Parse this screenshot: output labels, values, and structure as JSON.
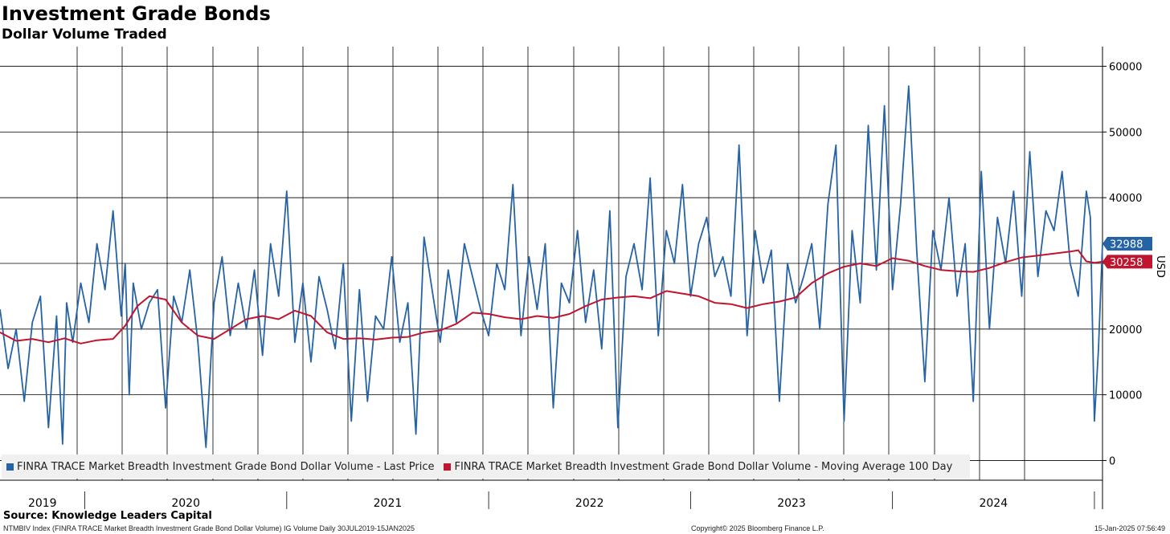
{
  "header": {
    "title": "Investment Grade Bonds",
    "subtitle": "Dollar Volume Traded"
  },
  "footer": {
    "source": "Source: Knowledge Leaders Capital",
    "index_description": "NTMBIV Index (FINRA TRACE Market Breadth Investment Grade Bond Dollar Volume) IG Volume  Daily 30JUL2019-15JAN2025",
    "copyright": "Copyright© 2025 Bloomberg Finance L.P.",
    "timestamp": "15-Jan-2025 07:56:49"
  },
  "colors": {
    "series_last_price": "#2563a5",
    "series_moving_average": "#c0152f",
    "grid": "#000000"
  },
  "chart_data": {
    "type": "line",
    "title": "Investment Grade Bonds",
    "subtitle": "Dollar Volume Traded",
    "xlabel": "",
    "ylabel": "USD",
    "ylim": [
      -3000,
      63000
    ],
    "y_ticks": [
      0,
      10000,
      20000,
      30000,
      40000,
      50000,
      60000
    ],
    "y_tick_labels": [
      "0",
      "10000",
      "20000",
      "30000",
      "40000",
      "50000",
      "60000"
    ],
    "x_range": [
      2019.58,
      2025.04
    ],
    "year_labels": [
      {
        "label": "2019",
        "center": 2019.79
      },
      {
        "label": "2020",
        "center": 2020.5
      },
      {
        "label": "2021",
        "center": 2021.5
      },
      {
        "label": "2022",
        "center": 2022.5
      },
      {
        "label": "2023",
        "center": 2023.5
      },
      {
        "label": "2024",
        "center": 2024.5
      }
    ],
    "year_separators": [
      2020.0,
      2021.0,
      2022.0,
      2023.0,
      2024.0,
      2025.0
    ],
    "grid": true,
    "legend": {
      "position": "bottom-left",
      "entries": [
        "FINRA TRACE Market Breadth Investment Grade Bond Dollar Volume - Last Price",
        "FINRA TRACE Market Breadth Investment Grade Bond Dollar Volume - Moving Average 100 Day"
      ]
    },
    "last_value_tags": [
      {
        "series": "Last Price",
        "value": "32988"
      },
      {
        "series": "Moving Average 100 Day",
        "value": "30258"
      }
    ],
    "series": [
      {
        "name": "FINRA TRACE Market Breadth Investment Grade Bond Dollar Volume - Last Price",
        "color": "#2563a5",
        "x": [
          2019.58,
          2019.62,
          2019.66,
          2019.7,
          2019.74,
          2019.78,
          2019.82,
          2019.86,
          2019.89,
          2019.91,
          2019.94,
          2019.98,
          2020.02,
          2020.06,
          2020.1,
          2020.14,
          2020.18,
          2020.2,
          2020.22,
          2020.24,
          2020.28,
          2020.32,
          2020.36,
          2020.4,
          2020.44,
          2020.48,
          2020.52,
          2020.56,
          2020.6,
          2020.64,
          2020.68,
          2020.72,
          2020.76,
          2020.8,
          2020.84,
          2020.88,
          2020.92,
          2020.96,
          2021.0,
          2021.04,
          2021.08,
          2021.12,
          2021.16,
          2021.2,
          2021.24,
          2021.28,
          2021.32,
          2021.36,
          2021.4,
          2021.44,
          2021.48,
          2021.52,
          2021.56,
          2021.6,
          2021.64,
          2021.68,
          2021.72,
          2021.76,
          2021.8,
          2021.84,
          2021.88,
          2021.92,
          2021.96,
          2022.0,
          2022.04,
          2022.08,
          2022.12,
          2022.16,
          2022.2,
          2022.24,
          2022.28,
          2022.32,
          2022.36,
          2022.4,
          2022.44,
          2022.48,
          2022.52,
          2022.56,
          2022.6,
          2022.64,
          2022.68,
          2022.72,
          2022.76,
          2022.8,
          2022.84,
          2022.88,
          2022.92,
          2022.96,
          2023.0,
          2023.04,
          2023.08,
          2023.12,
          2023.16,
          2023.2,
          2023.24,
          2023.28,
          2023.32,
          2023.36,
          2023.4,
          2023.44,
          2023.48,
          2023.52,
          2023.56,
          2023.6,
          2023.64,
          2023.68,
          2023.72,
          2023.76,
          2023.8,
          2023.84,
          2023.88,
          2023.92,
          2023.96,
          2024.0,
          2024.04,
          2024.08,
          2024.12,
          2024.16,
          2024.2,
          2024.24,
          2024.28,
          2024.32,
          2024.36,
          2024.4,
          2024.44,
          2024.48,
          2024.52,
          2024.56,
          2024.6,
          2024.64,
          2024.68,
          2024.72,
          2024.76,
          2024.8,
          2024.84,
          2024.88,
          2024.92,
          2024.96,
          2024.98,
          2025.0,
          2025.02,
          2025.04
        ],
        "values": [
          23000,
          14000,
          20000,
          9000,
          21000,
          25000,
          5000,
          22000,
          2500,
          24000,
          18000,
          27000,
          21000,
          33000,
          26000,
          38000,
          22000,
          30000,
          10000,
          27000,
          20000,
          24000,
          26000,
          8000,
          25000,
          21000,
          29000,
          18000,
          2000,
          24000,
          31000,
          19000,
          27000,
          20000,
          29000,
          16000,
          33000,
          25000,
          41000,
          18000,
          27000,
          15000,
          28000,
          23000,
          17000,
          30000,
          6000,
          26000,
          9000,
          22000,
          20000,
          31000,
          18000,
          24000,
          4000,
          34000,
          26000,
          18000,
          29000,
          21000,
          33000,
          28000,
          23000,
          19000,
          30000,
          26000,
          42000,
          19000,
          31000,
          23000,
          33000,
          8000,
          27000,
          24000,
          35000,
          21000,
          29000,
          17000,
          38000,
          5000,
          28000,
          33000,
          26000,
          43000,
          19000,
          35000,
          30000,
          42000,
          25000,
          33000,
          37000,
          28000,
          31000,
          25000,
          48000,
          19000,
          35000,
          27000,
          32000,
          9000,
          30000,
          24000,
          28000,
          33000,
          20000,
          39000,
          48000,
          6000,
          35000,
          24000,
          51000,
          29000,
          54000,
          26000,
          39000,
          57000,
          32000,
          12000,
          35000,
          29000,
          40000,
          25000,
          33000,
          9000,
          44000,
          20000,
          37000,
          30000,
          41000,
          25000,
          47000,
          28000,
          38000,
          35000,
          44000,
          30000,
          25000,
          41000,
          37000,
          6000,
          17000,
          33000
        ]
      },
      {
        "name": "FINRA TRACE Market Breadth Investment Grade Bond Dollar Volume - Moving Average 100 Day",
        "color": "#c0152f",
        "x": [
          2019.58,
          2019.66,
          2019.74,
          2019.82,
          2019.9,
          2019.98,
          2020.06,
          2020.14,
          2020.2,
          2020.26,
          2020.32,
          2020.4,
          2020.48,
          2020.56,
          2020.64,
          2020.72,
          2020.8,
          2020.88,
          2020.96,
          2021.04,
          2021.12,
          2021.2,
          2021.28,
          2021.36,
          2021.44,
          2021.52,
          2021.6,
          2021.68,
          2021.76,
          2021.84,
          2021.92,
          2022.0,
          2022.08,
          2022.16,
          2022.24,
          2022.32,
          2022.4,
          2022.48,
          2022.56,
          2022.64,
          2022.72,
          2022.8,
          2022.88,
          2022.96,
          2023.04,
          2023.12,
          2023.2,
          2023.28,
          2023.36,
          2023.44,
          2023.52,
          2023.6,
          2023.68,
          2023.76,
          2023.84,
          2023.92,
          2024.0,
          2024.08,
          2024.16,
          2024.24,
          2024.32,
          2024.4,
          2024.48,
          2024.56,
          2024.64,
          2024.72,
          2024.8,
          2024.88,
          2024.92,
          2024.96,
          2025.0,
          2025.04
        ],
        "values": [
          19500,
          18200,
          18500,
          18000,
          18600,
          17800,
          18300,
          18500,
          20500,
          23500,
          25000,
          24500,
          21000,
          19000,
          18500,
          20000,
          21500,
          22000,
          21500,
          22800,
          22000,
          19500,
          18500,
          18600,
          18400,
          18700,
          18800,
          19500,
          19800,
          20800,
          22500,
          22300,
          21800,
          21500,
          22000,
          21700,
          22300,
          23500,
          24500,
          24800,
          25000,
          24700,
          25800,
          25400,
          25000,
          24000,
          23800,
          23200,
          23800,
          24200,
          24800,
          27000,
          28500,
          29500,
          30000,
          29600,
          30800,
          30400,
          29600,
          29000,
          28800,
          28700,
          29300,
          30200,
          30900,
          31200,
          31500,
          31800,
          32000,
          30300,
          30100,
          30258
        ]
      }
    ]
  }
}
